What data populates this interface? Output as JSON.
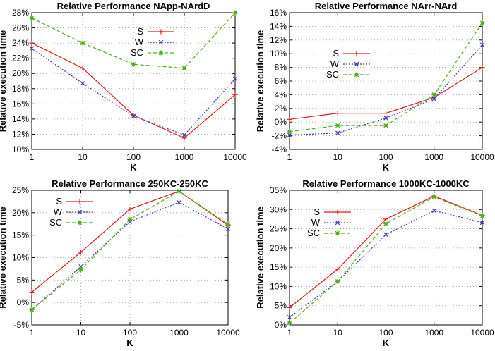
{
  "chart_data": [
    {
      "type": "line",
      "title": "Relative Performance NApp-NArdD",
      "xlabel": "K",
      "ylabel": "Relative execution time",
      "x": [
        "1",
        "10",
        "100",
        "1000",
        "10000"
      ],
      "xscale": "log",
      "ylim": [
        10,
        28
      ],
      "yticks": [
        "10%",
        "12%",
        "14%",
        "16%",
        "18%",
        "20%",
        "22%",
        "24%",
        "26%",
        "28%"
      ],
      "yunit": "%",
      "grid": true,
      "legend_position": "top-center",
      "series": [
        {
          "name": "S",
          "values": [
            24.0,
            20.7,
            14.5,
            11.5,
            17.2
          ],
          "color": "#e41a1c",
          "marker": "plus",
          "dash": "solid"
        },
        {
          "name": "W",
          "values": [
            23.3,
            18.7,
            14.4,
            11.9,
            19.3
          ],
          "color": "#3b3bb0",
          "marker": "x",
          "dash": "dotted"
        },
        {
          "name": "SC",
          "values": [
            27.3,
            24.0,
            21.2,
            20.7,
            28.0
          ],
          "color": "#4daf1a",
          "marker": "star",
          "dash": "dashed"
        }
      ]
    },
    {
      "type": "line",
      "title": "Relative Performance NArr-NArd",
      "xlabel": "K",
      "ylabel": "Relative execution time",
      "x": [
        "1",
        "10",
        "100",
        "1000",
        "10000"
      ],
      "xscale": "log",
      "ylim": [
        -4,
        16
      ],
      "yticks": [
        "-4%",
        "-2%",
        "0%",
        "2%",
        "4%",
        "6%",
        "8%",
        "10%",
        "12%",
        "14%",
        "16%"
      ],
      "yunit": "%",
      "grid": true,
      "legend_position": "center-left",
      "series": [
        {
          "name": "S",
          "values": [
            0.4,
            1.3,
            1.3,
            3.6,
            8.0
          ],
          "color": "#e41a1c",
          "marker": "plus",
          "dash": "solid"
        },
        {
          "name": "W",
          "values": [
            -1.9,
            -1.6,
            0.6,
            3.4,
            11.3
          ],
          "color": "#3b3bb0",
          "marker": "x",
          "dash": "dotted"
        },
        {
          "name": "SC",
          "values": [
            -1.4,
            -0.5,
            -0.5,
            4.0,
            14.5
          ],
          "color": "#4daf1a",
          "marker": "star",
          "dash": "dashed"
        }
      ]
    },
    {
      "type": "line",
      "title": "Relative Performance 250KC-250KC",
      "xlabel": "K",
      "ylabel": "Relative execution time",
      "x": [
        "1",
        "10",
        "100",
        "1000",
        "10000"
      ],
      "xscale": "log",
      "ylim": [
        -5,
        25
      ],
      "yticks": [
        "-5%",
        "0%",
        "5%",
        "10%",
        "15%",
        "20%",
        "25%"
      ],
      "yunit": "%",
      "grid": true,
      "legend_position": "top-left",
      "series": [
        {
          "name": "S",
          "values": [
            2.3,
            11.2,
            20.8,
            24.8,
            17.2
          ],
          "color": "#e41a1c",
          "marker": "plus",
          "dash": "solid"
        },
        {
          "name": "W",
          "values": [
            -1.6,
            8.0,
            18.0,
            22.3,
            16.4
          ],
          "color": "#3b3bb0",
          "marker": "x",
          "dash": "dotted"
        },
        {
          "name": "SC",
          "values": [
            -1.6,
            7.3,
            18.5,
            24.8,
            17.4
          ],
          "color": "#4daf1a",
          "marker": "star",
          "dash": "dashed"
        }
      ]
    },
    {
      "type": "line",
      "title": "Relative Performance 1000KC-1000KC",
      "xlabel": "K",
      "ylabel": "Relative execution time",
      "x": [
        "1",
        "10",
        "100",
        "1000",
        "10000"
      ],
      "xscale": "log",
      "ylim": [
        0,
        35
      ],
      "yticks": [
        "0%",
        "5%",
        "10%",
        "15%",
        "20%",
        "25%",
        "30%",
        "35%"
      ],
      "yunit": "%",
      "grid": true,
      "legend_position": "top-left",
      "series": [
        {
          "name": "S",
          "values": [
            4.5,
            14.5,
            27.5,
            33.5,
            28.5
          ],
          "color": "#e41a1c",
          "marker": "plus",
          "dash": "solid"
        },
        {
          "name": "W",
          "values": [
            2.0,
            11.3,
            23.5,
            29.7,
            26.6
          ],
          "color": "#3b3bb0",
          "marker": "x",
          "dash": "dotted"
        },
        {
          "name": "SC",
          "values": [
            0.5,
            11.3,
            26.3,
            33.3,
            28.3
          ],
          "color": "#4daf1a",
          "marker": "star",
          "dash": "dashed"
        }
      ]
    }
  ]
}
